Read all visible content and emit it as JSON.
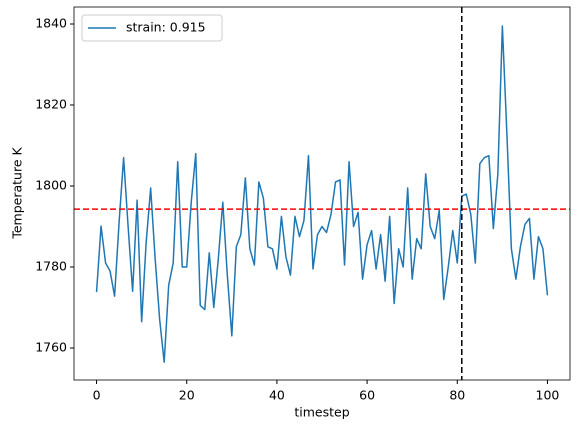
{
  "chart_data": {
    "type": "line",
    "x_label": "timestep",
    "y_label": "Temperature K",
    "x": [
      0,
      1,
      2,
      3,
      4,
      5,
      6,
      7,
      8,
      9,
      10,
      11,
      12,
      13,
      14,
      15,
      16,
      17,
      18,
      19,
      20,
      21,
      22,
      23,
      24,
      25,
      26,
      27,
      28,
      29,
      30,
      31,
      32,
      33,
      34,
      35,
      36,
      37,
      38,
      39,
      40,
      41,
      42,
      43,
      44,
      45,
      46,
      47,
      48,
      49,
      50,
      51,
      52,
      53,
      54,
      55,
      56,
      57,
      58,
      59,
      60,
      61,
      62,
      63,
      64,
      65,
      66,
      67,
      68,
      69,
      70,
      71,
      72,
      73,
      74,
      75,
      76,
      77,
      78,
      79,
      80,
      81,
      82,
      83,
      84,
      85,
      86,
      87,
      88,
      89,
      90,
      91,
      92,
      93,
      94,
      95,
      96,
      97,
      98,
      99,
      100
    ],
    "series": [
      {
        "name": "strain: 0.915",
        "color": "#1f77b4",
        "values": [
          1773.8,
          1790.1,
          1781,
          1779,
          1772.8,
          1791,
          1807,
          1790,
          1774,
          1796.5,
          1766.5,
          1786,
          1799.5,
          1782,
          1767,
          1756.5,
          1775.5,
          1781,
          1806,
          1780,
          1780,
          1796,
          1808,
          1770.5,
          1769.5,
          1783.5,
          1770,
          1782,
          1796,
          1778,
          1763,
          1785,
          1788,
          1802,
          1784.5,
          1780.5,
          1801,
          1797,
          1785,
          1784.5,
          1779.5,
          1792.5,
          1782.5,
          1778,
          1792.5,
          1787.5,
          1791.5,
          1807.5,
          1779.5,
          1788,
          1790,
          1788.5,
          1793,
          1801,
          1801.5,
          1780.5,
          1806,
          1790,
          1793.5,
          1777,
          1785.5,
          1789,
          1779.5,
          1788,
          1776.5,
          1792.5,
          1771,
          1784.5,
          1780,
          1799.5,
          1777,
          1787,
          1784.5,
          1803,
          1790,
          1787,
          1794,
          1772,
          1780,
          1789,
          1781,
          1797.5,
          1798,
          1793,
          1781,
          1805.5,
          1807,
          1807.5,
          1789.5,
          1803,
          1839.5,
          1813,
          1784.5,
          1777,
          1785,
          1790.5,
          1792,
          1777,
          1787.5,
          1784.5,
          1773
        ]
      }
    ],
    "reference_lines": [
      {
        "axis": "y",
        "value": 1794.3,
        "color": "#ff0000"
      },
      {
        "axis": "x",
        "value": 81,
        "color": "#000000"
      }
    ],
    "xlim": [
      -5,
      105
    ],
    "ylim": [
      1752.1,
      1844.2
    ],
    "xticks": [
      0,
      20,
      40,
      60,
      80,
      100
    ],
    "yticks": [
      1760,
      1780,
      1800,
      1820,
      1840
    ],
    "legend": "upper left"
  }
}
